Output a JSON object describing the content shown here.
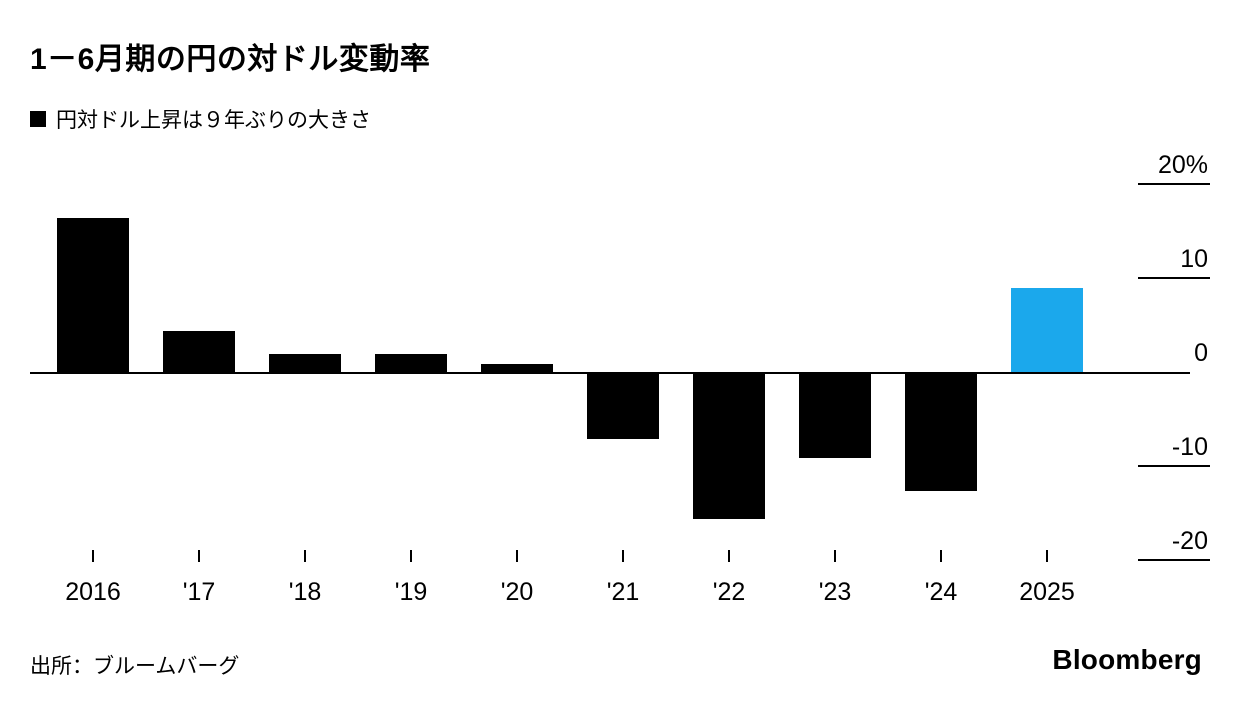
{
  "header": {
    "title": "1－6月期の円の対ドル変動率",
    "subtitle": "円対ドル上昇は９年ぶりの大きさ"
  },
  "chart_data": {
    "type": "bar",
    "title": "1－6月期の円の対ドル変動率",
    "legend_label": "円対ドル上昇は９年ぶりの大きさ",
    "categories": [
      "2016",
      "'17",
      "'18",
      "'19",
      "'20",
      "'21",
      "'22",
      "'23",
      "'24",
      "2025"
    ],
    "values": [
      16.5,
      4.5,
      2,
      2,
      1,
      -7,
      -15.5,
      -9,
      -12.5,
      9
    ],
    "unit": "%",
    "ylim": [
      -20,
      20
    ],
    "yticks": [
      20,
      10,
      0,
      -10,
      -20
    ],
    "ytick_labels": [
      "20%",
      "10",
      "0",
      "-10",
      "-20"
    ],
    "bar_color_default": "#000000",
    "bar_color_highlight": "#1BA8EC",
    "highlight_index": 9,
    "legend_position": "top-left",
    "grid": "right-side tick dashes with zero baseline across chart"
  },
  "footer": {
    "source": "出所：ブルームバーグ",
    "logo": "Bloomberg"
  }
}
